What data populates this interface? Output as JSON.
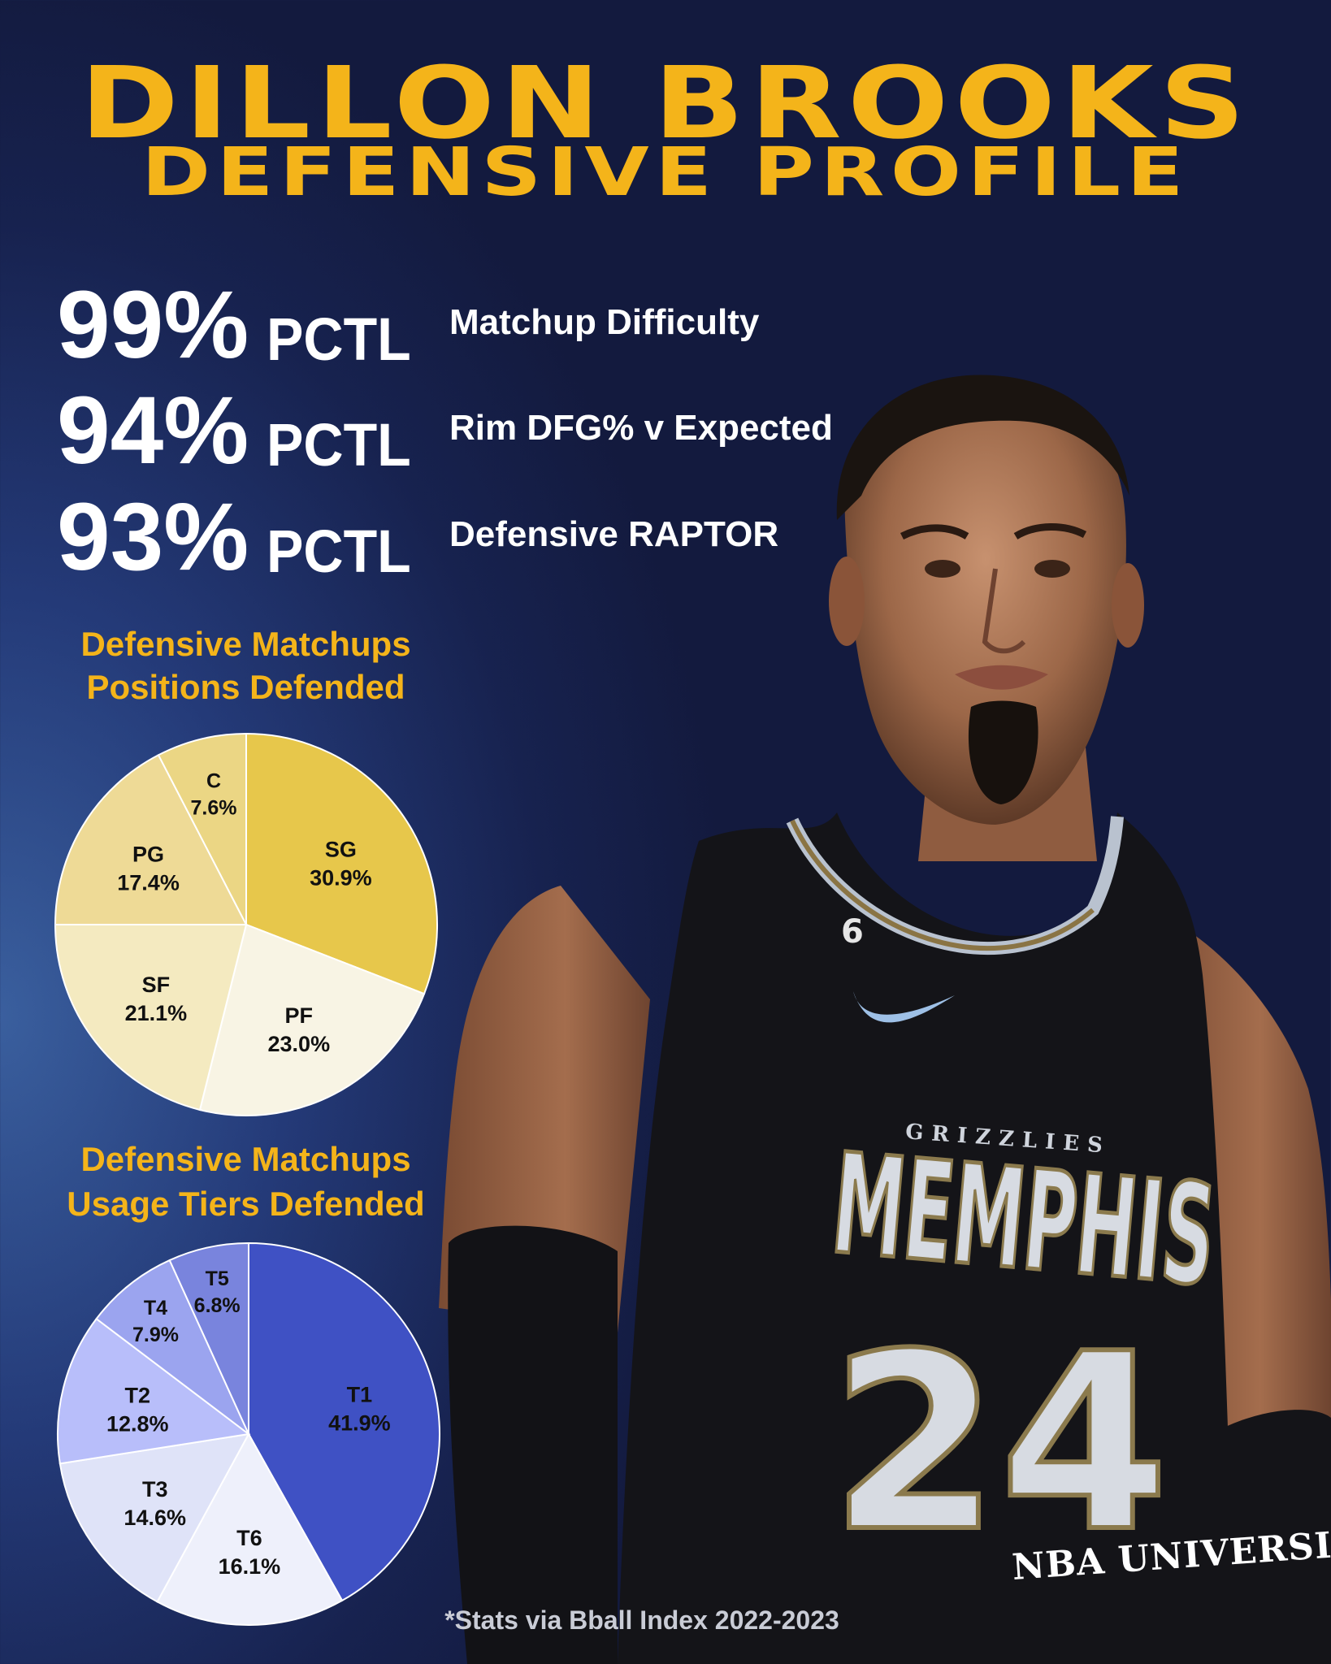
{
  "title": {
    "line1": "DILLON BROOKS",
    "line2": "DEFENSIVE PROFILE"
  },
  "stats": [
    {
      "value": "99%",
      "unit": "PCTL",
      "label": "Matchup Difficulty"
    },
    {
      "value": "94%",
      "unit": "PCTL",
      "label": "Rim DFG% v Expected"
    },
    {
      "value": "93%",
      "unit": "PCTL",
      "label": "Defensive RAPTOR"
    }
  ],
  "sections": {
    "positions": {
      "line1": "Defensive Matchups",
      "line2": "Positions Defended"
    },
    "usage": {
      "line1": "Defensive Matchups",
      "line2": "Usage Tiers Defended"
    }
  },
  "jersey": {
    "wordmark": "MEMPHIS",
    "team": "GRIZZLIES",
    "number": "24",
    "small_number": "6"
  },
  "watermark": "NBA UNIVERSITY",
  "footnote": "*Stats via Bball Index 2022-2023",
  "colors": {
    "gold": "#f4b41a",
    "white": "#ffffff"
  },
  "chart_data": [
    {
      "type": "pie",
      "title": "",
      "labels": [
        "SG",
        "PF",
        "SF",
        "PG",
        "C"
      ],
      "values": [
        30.9,
        23.0,
        21.1,
        17.4,
        7.6
      ],
      "display": [
        "30.9%",
        "23.0%",
        "21.1%",
        "17.4%",
        "7.6%"
      ],
      "colors": [
        "#e7c74b",
        "#f8f4e4",
        "#f4eac0",
        "#eeda96",
        "#ebd684"
      ]
    },
    {
      "type": "pie",
      "title": "",
      "labels": [
        "T1",
        "T6",
        "T3",
        "T2",
        "T4",
        "T5"
      ],
      "values": [
        41.9,
        16.1,
        14.6,
        12.8,
        7.9,
        6.8
      ],
      "display": [
        "41.9%",
        "16.1%",
        "14.6%",
        "12.8%",
        "7.9%",
        "6.8%"
      ],
      "colors": [
        "#3f51c4",
        "#eef0fb",
        "#dfe3f8",
        "#b8befa",
        "#9ba4ef",
        "#7984dd"
      ]
    }
  ]
}
